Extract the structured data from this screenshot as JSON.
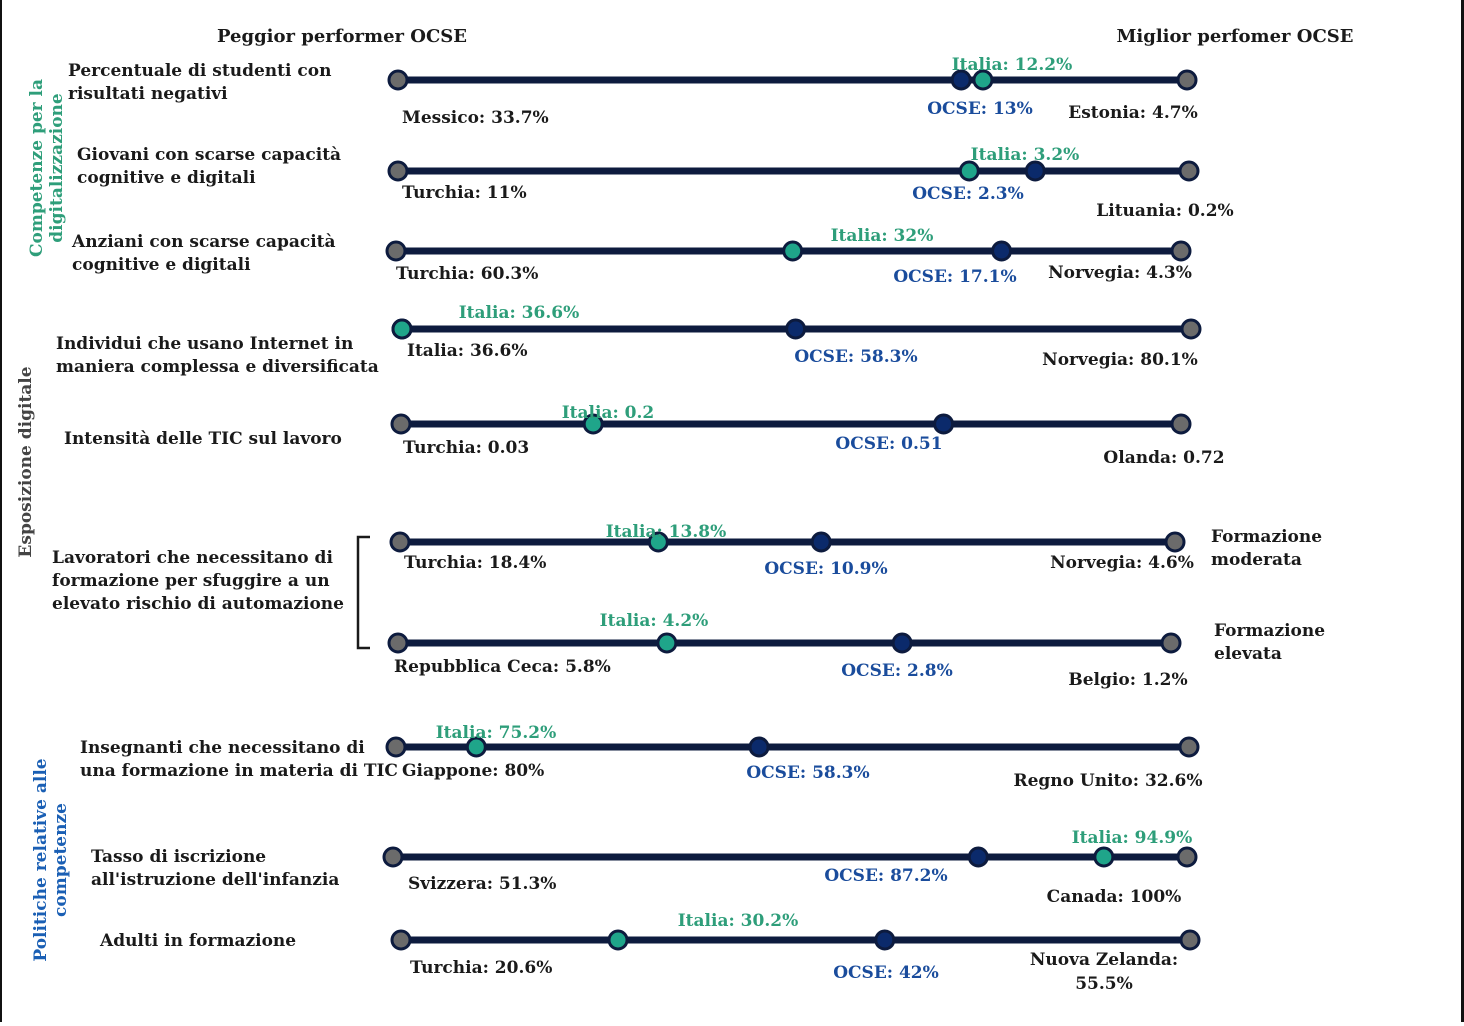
{
  "colors": {
    "line": "#0d1b3e",
    "endpoint": "#6b6b6b",
    "oecd": "#0b2a6b",
    "italy": "#1fa58a",
    "italy_text": "#2e9e7a",
    "oecd_text": "#1a4c9c",
    "section_green": "#2e9e7a",
    "section_gray": "#444444",
    "section_blue": "#1a5fb4"
  },
  "header": {
    "worst": "Peggior performer OCSE",
    "best": "Miglior perfomer OCSE"
  },
  "sections": [
    {
      "lines": [
        "Competenze per la",
        "digitalizzazione"
      ],
      "color": "section_green"
    },
    {
      "lines": [
        "Esposizione digitale"
      ],
      "color": "section_gray"
    },
    {
      "lines": [
        "Politiche relative alle",
        "competenze"
      ],
      "color": "section_blue"
    }
  ],
  "group_labels": [
    {
      "lines": [
        "Formazione",
        "moderata"
      ]
    },
    {
      "lines": [
        "Formazione",
        "elevata"
      ]
    }
  ],
  "chart_data": {
    "type": "dot-range",
    "rows": [
      {
        "label": [
          "Percentuale di studenti con",
          "risultati negativi"
        ],
        "worst": {
          "label": "Messico: 33.7%",
          "value": 33.7
        },
        "best": {
          "label": "Estonia: 4.7%",
          "value": 4.7
        },
        "oecd": {
          "label": "OCSE: 13%",
          "value": 13
        },
        "italy": {
          "label": "Italia: 12.2%",
          "value": 12.2
        }
      },
      {
        "label": [
          "Giovani con scarse capacità",
          "cognitive e digitali"
        ],
        "worst": {
          "label": "Turchia: 11%",
          "value": 11
        },
        "best": {
          "label": "Lituania: 0.2%",
          "value": 0.2
        },
        "oecd": {
          "label": "OCSE: 2.3%",
          "value": 2.3
        },
        "italy": {
          "label": "Italia: 3.2%",
          "value": 3.2
        }
      },
      {
        "label": [
          "Anziani con scarse capacità",
          "cognitive e digitali"
        ],
        "worst": {
          "label": "Turchia: 60.3%",
          "value": 60.3
        },
        "best": {
          "label": "Norvegia: 4.3%",
          "value": 4.3
        },
        "oecd": {
          "label": "OCSE: 17.1%",
          "value": 17.1
        },
        "italy": {
          "label": "Italia: 32%",
          "value": 32
        }
      },
      {
        "label": [
          "Individui che usano Internet in",
          "maniera complessa e diversificata"
        ],
        "worst": {
          "label": "Italia: 36.6%",
          "value": 36.6
        },
        "best": {
          "label": "Norvegia: 80.1%",
          "value": 80.1
        },
        "oecd": {
          "label": "OCSE: 58.3%",
          "value": 58.3
        },
        "italy": {
          "label": "Italia: 36.6%",
          "value": 36.6
        }
      },
      {
        "label": [
          "Intensità delle TIC sul lavoro"
        ],
        "worst": {
          "label": "Turchia: 0.03",
          "value": 0.03
        },
        "best": {
          "label": "Olanda: 0.72",
          "value": 0.72
        },
        "oecd": {
          "label": "OCSE: 0.51",
          "value": 0.51
        },
        "italy": {
          "label": "Italia: 0.2",
          "value": 0.2
        }
      },
      {
        "label": [],
        "worst": {
          "label": "Turchia: 18.4%",
          "value": 18.4
        },
        "best": {
          "label": "Norvegia: 4.6%",
          "value": 4.6
        },
        "oecd": {
          "label": "OCSE: 10.9%",
          "value": 10.9
        },
        "italy": {
          "label": "Italia: 13.8%",
          "value": 13.8
        }
      },
      {
        "label": [],
        "worst": {
          "label": "Repubblica Ceca: 5.8%",
          "value": 5.8
        },
        "best": {
          "label": "Belgio: 1.2%",
          "value": 1.2
        },
        "oecd": {
          "label": "OCSE: 2.8%",
          "value": 2.8
        },
        "italy": {
          "label": "Italia: 4.2%",
          "value": 4.2
        }
      },
      {
        "label": [
          "Insegnanti che necessitano di",
          "una formazione in materia di TIC"
        ],
        "worst": {
          "label": "Giappone: 80%",
          "value": 80
        },
        "best": {
          "label": "Regno Unito: 32.6%",
          "value": 32.6
        },
        "oecd": {
          "label": "OCSE: 58.3%",
          "value": 58.3
        },
        "italy": {
          "label": "Italia: 75.2%",
          "value": 75.2
        }
      },
      {
        "label": [
          "Tasso di iscrizione",
          "all'istruzione dell'infanzia"
        ],
        "worst": {
          "label": "Svizzera: 51.3%",
          "value": 51.3
        },
        "best": {
          "label": "Canada: 100%",
          "value": 100
        },
        "oecd": {
          "label": "OCSE: 87.2%",
          "value": 87.2
        },
        "italy": {
          "label": "Italia: 94.9%",
          "value": 94.9
        }
      },
      {
        "label": [
          "Adulti in formazione"
        ],
        "worst": {
          "label": "Turchia: 20.6%",
          "value": 20.6
        },
        "best": {
          "label": [
            "Nuova Zelanda:",
            "55.5%"
          ],
          "value": 55.5
        },
        "oecd": {
          "label": "OCSE: 42%",
          "value": 42
        },
        "italy": {
          "label": "Italia: 30.2%",
          "value": 30.2
        }
      }
    ],
    "shared_label": [
      "Lavoratori che necessitano di",
      "formazione per sfuggire a un",
      "elevato rischio di automazione"
    ]
  }
}
